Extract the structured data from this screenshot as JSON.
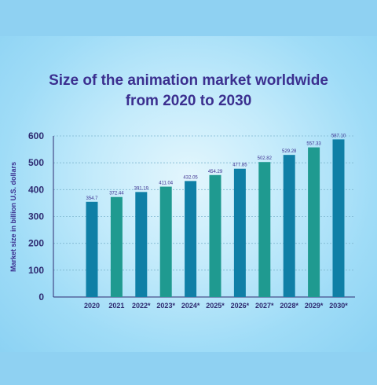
{
  "chart_data": {
    "type": "bar",
    "title_line1": "Size of the animation market worldwide",
    "title_line2": "from 2020 to 2030",
    "ylabel": "Market size in billion U.S. dollars",
    "xlabel": "",
    "categories": [
      "2020",
      "2021",
      "2022*",
      "2023*",
      "2024*",
      "2025*",
      "2026*",
      "2027*",
      "2028*",
      "2029*",
      "2030*"
    ],
    "values": [
      354.7,
      372.44,
      391.19,
      411.04,
      432.05,
      454.29,
      477.85,
      502.82,
      529.28,
      557.33,
      587.1
    ],
    "value_labels": [
      "354.7",
      "372.44",
      "391.19",
      "411.04",
      "432.05",
      "454.29",
      "477.85",
      "502.82",
      "529.28",
      "557.33",
      "587.10"
    ],
    "bar_colors": [
      "#0f7fa6",
      "#1f9a90",
      "#0f7fa6",
      "#1f9a90",
      "#0f7fa6",
      "#1f9a90",
      "#0f7fa6",
      "#1f9a90",
      "#0f7fa6",
      "#1f9a90",
      "#0f7fa6"
    ],
    "ylim": [
      0,
      600
    ],
    "yticks": [
      0,
      100,
      200,
      300,
      400,
      500,
      600
    ],
    "grid": true
  },
  "colors": {
    "title": "#3b2f8f",
    "axis": "#2e2a70",
    "grid": "#7fb7cf"
  }
}
